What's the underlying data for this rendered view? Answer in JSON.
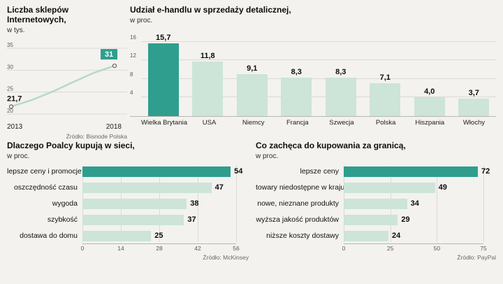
{
  "page": {
    "background": "#f3f2ee",
    "accent": "#2f9e8e",
    "bar_fill": "#cde4d8",
    "grid_color": "#dbdad4",
    "line_color": "#b7d8ca",
    "text_color": "#111111"
  },
  "chart_data": [
    {
      "id": "online-shops-count",
      "type": "line",
      "title": "Liczba sklepów Internetowych,",
      "subtitle": "w tys.",
      "source": "Źródło: Bisnode Polska",
      "x": [
        2013,
        2014,
        2015,
        2016,
        2017,
        2018
      ],
      "x_labels": [
        "2013",
        "2018"
      ],
      "values": [
        21.7,
        23.2,
        25.1,
        27.3,
        29.4,
        31
      ],
      "first_label": "21,7",
      "last_label": "31",
      "ylim": [
        20,
        35
      ],
      "yticks": [
        20,
        25,
        30,
        35
      ],
      "grid": true,
      "legend": "none"
    },
    {
      "id": "ecommerce-retail-share",
      "type": "bar",
      "title": "Udział e-handlu w sprzedaży detalicznej,",
      "subtitle": "w proc.",
      "categories": [
        "Wielka Brytania",
        "USA",
        "Niemcy",
        "Francja",
        "Szwecja",
        "Polska",
        "Hiszpania",
        "Włochy"
      ],
      "values": [
        15.7,
        11.8,
        9.1,
        8.3,
        8.3,
        7.1,
        4.0,
        3.7
      ],
      "value_labels": [
        "15,7",
        "11,8",
        "9,1",
        "8,3",
        "8,3",
        "7,1",
        "4,0",
        "3,7"
      ],
      "highlight_index": 0,
      "ylim": [
        0,
        16
      ],
      "yticks": [
        4,
        8,
        12,
        16
      ],
      "grid": true,
      "legend": "none"
    },
    {
      "id": "why-poles-buy-online",
      "type": "hbar",
      "title": "Dlaczego Poalcy kupują w sieci,",
      "subtitle": "w proc.",
      "source": "Źródło: McKinsey",
      "categories": [
        "lepsze ceny i promocje",
        "oszczędność czasu",
        "wygoda",
        "szybkość",
        "dostawa do domu"
      ],
      "values": [
        54,
        47,
        38,
        37,
        25
      ],
      "value_labels": [
        "54",
        "47",
        "38",
        "37",
        "25"
      ],
      "highlight_index": 0,
      "xlim": [
        0,
        56
      ],
      "xticks": [
        0,
        14,
        28,
        42,
        56
      ],
      "grid": true,
      "legend": "none"
    },
    {
      "id": "cross-border-shopping-incentives",
      "type": "hbar",
      "title": "Co zachęca do kupowania za granicą,",
      "subtitle": "w proc.",
      "source": "Źródło: PayPal",
      "categories": [
        "lepsze ceny",
        "towary niedostępne w kraju",
        "nowe, nieznane produkty",
        "wyższa jakość produktów",
        "niższe koszty dostawy"
      ],
      "values": [
        72,
        49,
        34,
        29,
        24
      ],
      "value_labels": [
        "72",
        "49",
        "34",
        "29",
        "24"
      ],
      "highlight_index": 0,
      "xlim": [
        0,
        75
      ],
      "xticks": [
        0,
        25,
        50,
        75
      ],
      "grid": true,
      "legend": "none"
    }
  ]
}
